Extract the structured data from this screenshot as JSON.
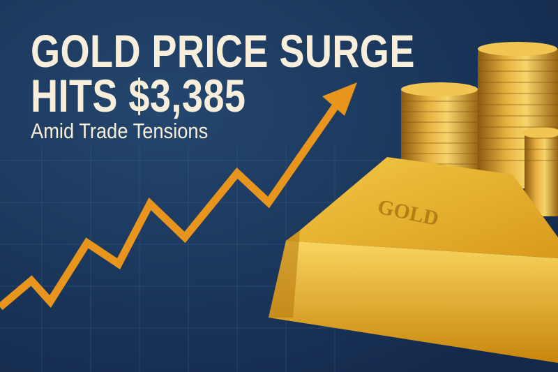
{
  "headline": {
    "line1": "GOLD PRICE SURGE",
    "line2": "HITS $3,385",
    "subtitle": "Amid Trade Tensions"
  },
  "bar_label": "GOLD",
  "colors": {
    "background": "#1b3658",
    "text": "#f7efdb",
    "arrow": "#e8951e",
    "gold": "#e0a82c"
  },
  "icons": [
    "trend-up-arrow",
    "gold-bar",
    "coin-stack"
  ]
}
